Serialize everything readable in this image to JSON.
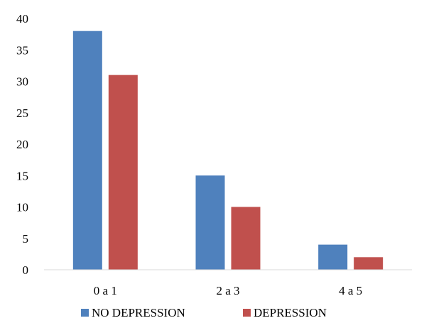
{
  "chart_data": {
    "type": "bar",
    "title": "",
    "xlabel": "",
    "ylabel": "",
    "categories": [
      "0 a 1",
      "2 a 3",
      "4 a 5"
    ],
    "series": [
      {
        "name": "NO DEPRESSION",
        "values": [
          38,
          15,
          4
        ],
        "color": "#4F81BD"
      },
      {
        "name": "DEPRESSION",
        "values": [
          31,
          10,
          2
        ],
        "color": "#C0504D"
      }
    ],
    "ylim": [
      0,
      40
    ],
    "yticks": [
      0,
      5,
      10,
      15,
      20,
      25,
      30,
      35,
      40
    ],
    "grid": false,
    "legend_position": "bottom"
  }
}
